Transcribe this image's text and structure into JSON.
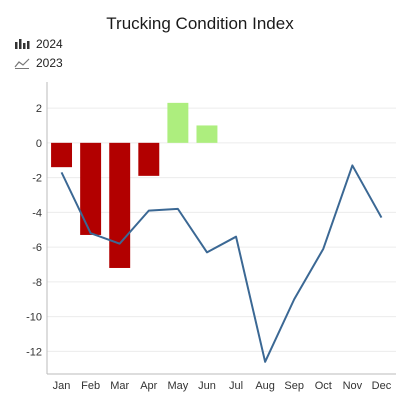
{
  "chart_data": {
    "type": "bar+line",
    "title": "Trucking Condition Index",
    "categories": [
      "Jan",
      "Feb",
      "Mar",
      "Apr",
      "May",
      "Jun",
      "Jul",
      "Aug",
      "Sep",
      "Oct",
      "Nov",
      "Dec"
    ],
    "series": [
      {
        "name": "2024",
        "type": "bar",
        "values": [
          -1.4,
          -5.3,
          -7.2,
          -1.9,
          2.3,
          1.0,
          null,
          null,
          null,
          null,
          null,
          null
        ],
        "positive_color": "#adee7e",
        "negative_color": "#b20000"
      },
      {
        "name": "2023",
        "type": "line",
        "values": [
          -1.7,
          -5.2,
          -5.8,
          -3.9,
          -3.8,
          -6.3,
          -5.4,
          -12.6,
          -9.0,
          -6.1,
          -1.3,
          -4.3
        ],
        "color": "#3b6894"
      }
    ],
    "y_ticks": [
      2,
      0,
      -2,
      -4,
      -6,
      -8,
      -10,
      -12
    ],
    "ylim": [
      -13.3,
      3.5
    ],
    "grid": true,
    "legend_position": "top-left",
    "axis_color": "#bbbbbb",
    "grid_color": "#ececec"
  }
}
